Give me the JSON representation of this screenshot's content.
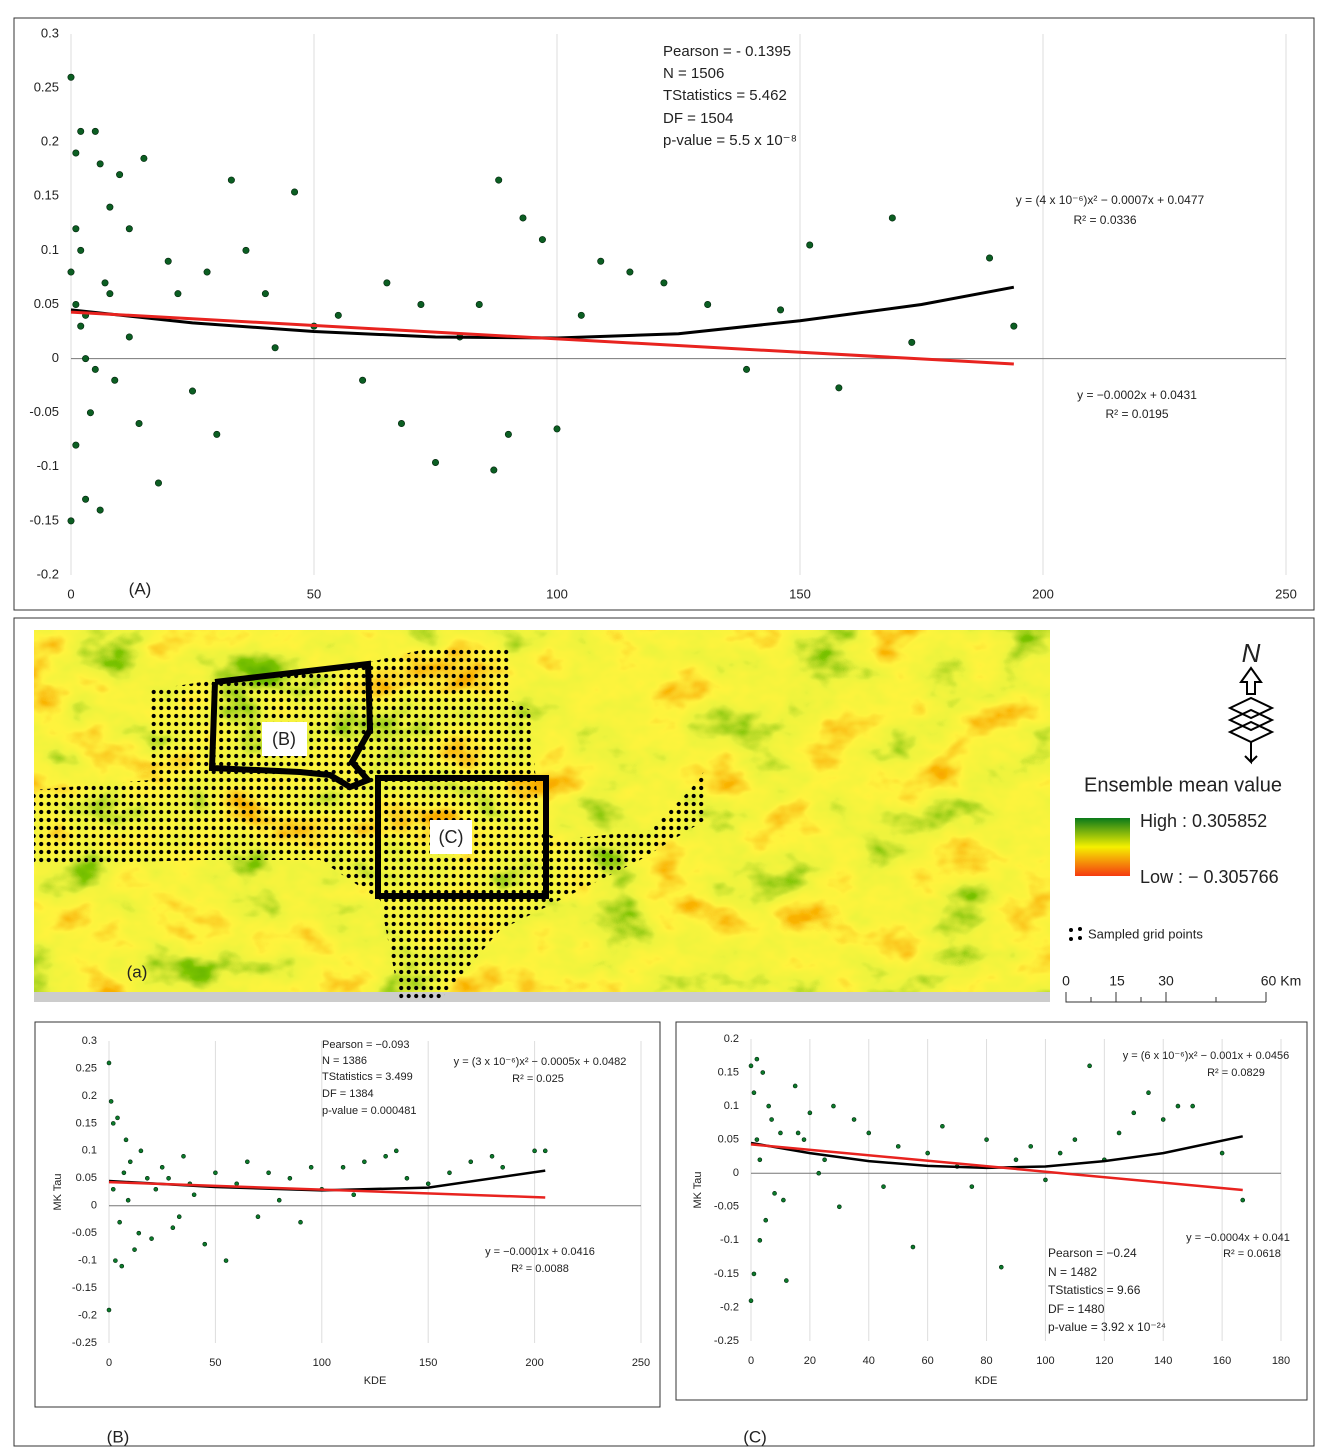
{
  "chart_data": [
    {
      "type": "scatter",
      "panel_label": "(A)",
      "color": "#0b5e22",
      "annotations": [
        "Pearson = - 0.1395",
        "N = 1506",
        "TStatistics = 5.462",
        "DF = 1504",
        "p-value = 5.5 x 10⁻⁸",
        "y = (4 x 10⁻⁶)x² − 0.0007x + 0.0477",
        "R² = 0.0336",
        "y = −0.0002x + 0.0431",
        "R² = 0.0195"
      ],
      "xlim": [
        0,
        250
      ],
      "xticks": [
        0,
        50,
        100,
        150,
        200,
        250
      ],
      "ylim": [
        -0.2,
        0.3
      ],
      "yticks": [
        -0.2,
        -0.15,
        -0.1,
        -0.05,
        0,
        0.05,
        0.1,
        0.15,
        0.2,
        0.25,
        0.3
      ],
      "grid": true,
      "x": [
        0,
        0,
        1,
        2,
        5,
        3,
        6,
        6,
        8,
        10,
        12,
        15,
        18,
        20,
        22,
        25,
        28,
        30,
        33,
        36,
        40,
        42,
        46,
        50,
        55,
        60,
        65,
        68,
        72,
        75,
        80,
        84,
        87,
        88,
        90,
        93,
        97,
        100,
        105,
        109,
        115,
        122,
        131,
        139,
        146,
        152,
        158,
        169,
        173,
        189,
        194,
        1,
        2,
        3,
        4,
        2,
        1,
        7,
        9,
        12,
        14,
        0,
        1,
        3,
        5,
        8
      ],
      "values": [
        0.26,
        -0.15,
        0.19,
        0.21,
        0.21,
        -0.13,
        -0.14,
        0.18,
        0.14,
        0.17,
        0.12,
        0.185,
        -0.115,
        0.09,
        0.06,
        -0.03,
        0.08,
        -0.07,
        0.165,
        0.1,
        0.06,
        0.01,
        0.154,
        0.03,
        0.04,
        -0.02,
        0.07,
        -0.06,
        0.05,
        -0.096,
        0.02,
        0.05,
        -0.103,
        0.165,
        -0.07,
        0.13,
        0.11,
        -0.065,
        0.04,
        0.09,
        0.08,
        0.07,
        0.05,
        -0.01,
        0.045,
        0.105,
        -0.027,
        0.13,
        0.015,
        0.093,
        0.03,
        0.05,
        0.03,
        0,
        -0.05,
        0.1,
        -0.08,
        0.07,
        -0.02,
        0.02,
        -0.06,
        0.08,
        0.12,
        0.04,
        -0.01,
        0.06
      ],
      "trend_lines": [
        {
          "color": "#000000",
          "x": [
            0,
            25,
            50,
            75,
            100,
            125,
            150,
            175,
            194
          ],
          "values": [
            0.045,
            0.033,
            0.025,
            0.02,
            0.019,
            0.023,
            0.035,
            0.05,
            0.066
          ]
        },
        {
          "color": "#e8231f",
          "x": [
            0,
            194
          ],
          "values": [
            0.043,
            -0.005
          ]
        }
      ]
    },
    {
      "type": "scatter",
      "panel_label": "(B)",
      "color": "#0b7a2a",
      "xlabel": "KDE",
      "ylabel": "MK Tau",
      "annotations": [
        "Pearson = −0.093",
        "N = 1386",
        "TStatistics = 3.499",
        "DF = 1384",
        "p-value = 0.000481",
        "y = (3 x 10⁻⁶)x² − 0.0005x + 0.0482",
        "R² = 0.025",
        "y = −0.0001x + 0.0416",
        "R² = 0.0088"
      ],
      "xlim": [
        0,
        250
      ],
      "xticks": [
        0,
        50,
        100,
        150,
        200,
        250
      ],
      "ylim": [
        -0.25,
        0.3
      ],
      "yticks": [
        -0.25,
        -0.2,
        -0.15,
        -0.1,
        -0.05,
        0,
        0.05,
        0.1,
        0.15,
        0.2,
        0.25,
        0.3
      ],
      "grid": true,
      "x": [
        0,
        0,
        1,
        2,
        3,
        4,
        6,
        8,
        10,
        12,
        15,
        18,
        20,
        25,
        30,
        35,
        40,
        45,
        50,
        55,
        60,
        65,
        70,
        75,
        80,
        85,
        90,
        95,
        100,
        110,
        115,
        120,
        130,
        135,
        140,
        150,
        160,
        170,
        180,
        185,
        200,
        205,
        2,
        5,
        7,
        9,
        14,
        22,
        28,
        33,
        38
      ],
      "values": [
        0.26,
        -0.19,
        0.19,
        0.15,
        -0.1,
        0.16,
        -0.11,
        0.12,
        0.08,
        -0.08,
        0.1,
        0.05,
        -0.06,
        0.07,
        -0.04,
        0.09,
        0.02,
        -0.07,
        0.06,
        -0.1,
        0.04,
        0.08,
        -0.02,
        0.06,
        0.01,
        0.05,
        -0.03,
        0.07,
        0.03,
        0.07,
        0.02,
        0.08,
        0.09,
        0.1,
        0.05,
        0.04,
        0.06,
        0.08,
        0.09,
        0.07,
        0.1,
        0.1,
        0.03,
        -0.03,
        0.06,
        0.01,
        -0.05,
        0.03,
        0.05,
        -0.02,
        0.04
      ],
      "trend_lines": [
        {
          "color": "#000000",
          "x": [
            0,
            50,
            100,
            150,
            205
          ],
          "values": [
            0.045,
            0.034,
            0.028,
            0.033,
            0.064
          ]
        },
        {
          "color": "#e8231f",
          "x": [
            0,
            205
          ],
          "values": [
            0.043,
            0.015
          ]
        }
      ]
    },
    {
      "type": "scatter",
      "panel_label": "(C)",
      "color": "#0b7a2a",
      "xlabel": "KDE",
      "ylabel": "MK Tau",
      "annotations": [
        "y = (6 x 10⁻⁶)x² − 0.001x + 0.0456",
        "R² = 0.0829",
        "y = −0.0004x + 0.041",
        "R² = 0.0618",
        "Pearson = −0.24",
        "N = 1482",
        "TStatistics = 9.66",
        "DF = 1480",
        "p-value = 3.92 x 10⁻²⁴"
      ],
      "xlim": [
        0,
        180
      ],
      "xticks": [
        0,
        20,
        40,
        60,
        80,
        100,
        120,
        140,
        160,
        180
      ],
      "ylim": [
        -0.25,
        0.2
      ],
      "yticks": [
        -0.25,
        -0.2,
        -0.15,
        -0.1,
        -0.05,
        0,
        0.05,
        0.1,
        0.15,
        0.2
      ],
      "grid": true,
      "x": [
        0,
        0,
        1,
        1,
        2,
        3,
        4,
        5,
        6,
        8,
        10,
        12,
        15,
        18,
        20,
        25,
        30,
        35,
        40,
        45,
        50,
        55,
        60,
        65,
        70,
        75,
        80,
        85,
        90,
        95,
        100,
        105,
        110,
        115,
        120,
        125,
        130,
        135,
        140,
        145,
        150,
        160,
        167,
        2,
        3,
        7,
        11,
        16,
        23,
        28
      ],
      "values": [
        0.16,
        -0.19,
        -0.15,
        0.12,
        0.17,
        -0.1,
        0.15,
        -0.07,
        0.1,
        -0.03,
        0.06,
        -0.16,
        0.13,
        0.05,
        0.09,
        0.02,
        -0.05,
        0.08,
        0.06,
        -0.02,
        0.04,
        -0.11,
        0.03,
        0.07,
        0.01,
        -0.02,
        0.05,
        -0.14,
        0.02,
        0.04,
        -0.01,
        0.03,
        0.05,
        0.16,
        0.02,
        0.06,
        0.09,
        0.12,
        0.08,
        0.1,
        0.1,
        0.03,
        -0.04,
        0.05,
        0.02,
        0.08,
        -0.04,
        0.06,
        0,
        0.1
      ],
      "trend_lines": [
        {
          "color": "#000000",
          "x": [
            0,
            20,
            40,
            60,
            80,
            100,
            120,
            140,
            167
          ],
          "values": [
            0.045,
            0.03,
            0.018,
            0.011,
            0.008,
            0.01,
            0.018,
            0.03,
            0.055
          ]
        },
        {
          "color": "#e8231f",
          "x": [
            0,
            167
          ],
          "values": [
            0.043,
            -0.025
          ]
        }
      ]
    }
  ],
  "map": {
    "labels": [
      "(B)",
      "(C)",
      "(a)"
    ],
    "legend_title": "Ensemble mean value",
    "high": "High : 0.305852",
    "low": "Low : − 0.305766",
    "points_label": "Sampled grid points",
    "north": "N",
    "scale_labels": [
      "0",
      "15",
      "30",
      "60 Km"
    ]
  }
}
